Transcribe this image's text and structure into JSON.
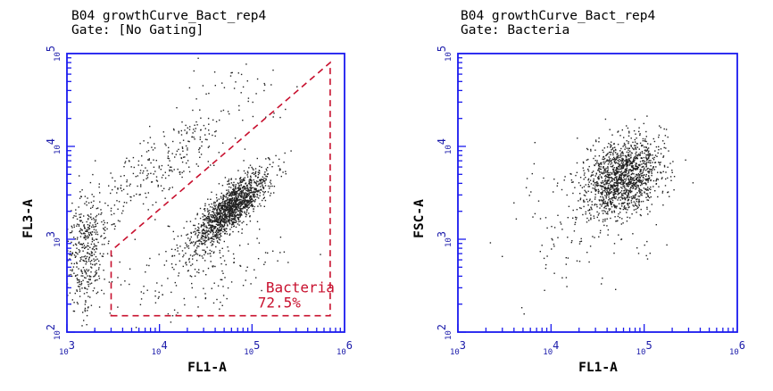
{
  "chart_data": [
    {
      "type": "scatter",
      "title_line1": "B04 growthCurve_Bact_rep4",
      "title_line2": "Gate: [No Gating]",
      "xlabel": "FL1-A",
      "ylabel": "FL3-A",
      "x_scale": "log",
      "y_scale": "log",
      "xlim": [
        1000,
        1000000
      ],
      "ylim": [
        100,
        100000
      ],
      "x_ticks": [
        {
          "value": 1000,
          "base": "10",
          "exp": "3"
        },
        {
          "value": 10000,
          "base": "10",
          "exp": "4"
        },
        {
          "value": 100000,
          "base": "10",
          "exp": "5"
        },
        {
          "value": 1000000,
          "base": "10",
          "exp": "6"
        }
      ],
      "y_ticks": [
        {
          "value": 100,
          "base": "10",
          "exp": "2"
        },
        {
          "value": 1000,
          "base": "10",
          "exp": "3"
        },
        {
          "value": 10000,
          "base": "10",
          "exp": "4"
        },
        {
          "value": 100000,
          "base": "10",
          "exp": "5"
        }
      ],
      "gate": {
        "name": "Bacteria",
        "percent": "72.5%",
        "color": "#c8102e",
        "vertices": [
          [
            3000,
            150
          ],
          [
            700000,
            150
          ],
          [
            700000,
            80000
          ],
          [
            3000,
            750
          ]
        ]
      },
      "populations": [
        {
          "name": "bacteria-cluster",
          "count": 1500,
          "center": [
            60000,
            2200
          ],
          "log_sd_x": 0.2,
          "log_sd_y": 0.2,
          "rho": 0.8
        },
        {
          "name": "low-debris",
          "count": 420,
          "center": [
            1600,
            700
          ],
          "log_sd_x": 0.12,
          "log_sd_y": 0.35,
          "rho": 0.2
        },
        {
          "name": "diagonal-spread",
          "count": 280,
          "center": [
            9000,
            5500
          ],
          "log_sd_x": 0.45,
          "log_sd_y": 0.35,
          "rho": 0.85
        },
        {
          "name": "gate-interior-sparse",
          "count": 200,
          "center": [
            30000,
            500
          ],
          "log_sd_x": 0.4,
          "log_sd_y": 0.25,
          "rho": 0.3
        },
        {
          "name": "upper-sparse",
          "count": 40,
          "center": [
            60000,
            45000
          ],
          "log_sd_x": 0.3,
          "log_sd_y": 0.2,
          "rho": 0.0
        }
      ],
      "point_color": "#222222",
      "grid": false
    },
    {
      "type": "scatter",
      "title_line1": "B04 growthCurve_Bact_rep4",
      "title_line2": "Gate: Bacteria",
      "xlabel": "FL1-A",
      "ylabel": "FSC-A",
      "x_scale": "log",
      "y_scale": "log",
      "xlim": [
        1000,
        1000000
      ],
      "ylim": [
        100,
        100000
      ],
      "x_ticks": [
        {
          "value": 1000,
          "base": "10",
          "exp": "3"
        },
        {
          "value": 10000,
          "base": "10",
          "exp": "4"
        },
        {
          "value": 100000,
          "base": "10",
          "exp": "5"
        },
        {
          "value": 1000000,
          "base": "10",
          "exp": "6"
        }
      ],
      "y_ticks": [
        {
          "value": 100,
          "base": "10",
          "exp": "2"
        },
        {
          "value": 1000,
          "base": "10",
          "exp": "3"
        },
        {
          "value": 10000,
          "base": "10",
          "exp": "4"
        },
        {
          "value": 100000,
          "base": "10",
          "exp": "5"
        }
      ],
      "populations": [
        {
          "name": "bacteria-fsc-cluster",
          "count": 1400,
          "center": [
            60000,
            4800
          ],
          "log_sd_x": 0.2,
          "log_sd_y": 0.2,
          "rho": 0.25
        },
        {
          "name": "bacteria-fsc-sparse",
          "count": 160,
          "center": [
            25000,
            1800
          ],
          "log_sd_x": 0.45,
          "log_sd_y": 0.35,
          "rho": 0.3
        }
      ],
      "point_color": "#222222",
      "grid": false
    }
  ]
}
